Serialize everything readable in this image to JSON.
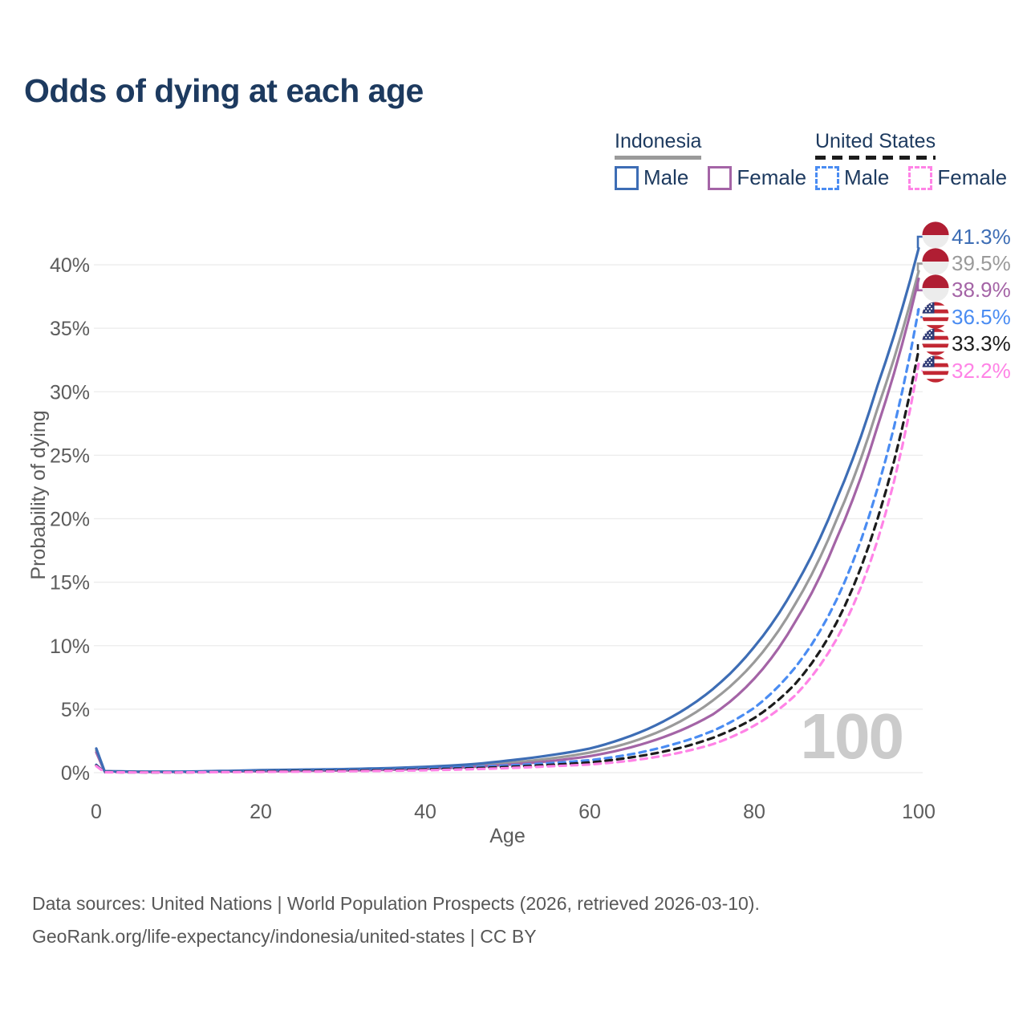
{
  "title": "Odds of dying at each age",
  "legend": {
    "groups": [
      {
        "label": "Indonesia",
        "line_style": "solid",
        "line_color": "#9a9a9a",
        "items": [
          {
            "label": "Male",
            "swatch_color": "#3d6db5",
            "swatch_style": "solid"
          },
          {
            "label": "Female",
            "swatch_color": "#a464a6",
            "swatch_style": "solid"
          }
        ]
      },
      {
        "label": "United States",
        "line_style": "dashed",
        "line_color": "#1c1c1c",
        "items": [
          {
            "label": "Male",
            "swatch_color": "#4a8cf2",
            "swatch_style": "dashed"
          },
          {
            "label": "Female",
            "swatch_color": "#ff83e6",
            "swatch_style": "dashed"
          }
        ]
      }
    ]
  },
  "chart_data": {
    "type": "line",
    "title": "Odds of dying at each age",
    "xlabel": "Age",
    "ylabel": "Probability of dying",
    "x_ticks": [
      0,
      20,
      40,
      60,
      80,
      100
    ],
    "y_ticks": [
      "0%",
      "5%",
      "10%",
      "15%",
      "20%",
      "25%",
      "30%",
      "35%",
      "40%"
    ],
    "xlim": [
      0,
      100
    ],
    "ylim": [
      0,
      42
    ],
    "grid": "horizontal",
    "legend_position": "top-right",
    "watermark": "100",
    "ages": [
      0,
      1,
      5,
      10,
      15,
      20,
      25,
      30,
      35,
      40,
      45,
      50,
      55,
      60,
      65,
      70,
      75,
      80,
      85,
      90,
      95,
      100
    ],
    "series": [
      {
        "name": "Indonesia Male",
        "country": "Indonesia",
        "sex": "Male",
        "flag": "id",
        "color": "#3d6db5",
        "dashed": false,
        "end_label": "41.3%",
        "values": [
          1.9,
          0.12,
          0.08,
          0.08,
          0.13,
          0.2,
          0.24,
          0.28,
          0.35,
          0.46,
          0.63,
          0.95,
          1.35,
          1.9,
          2.9,
          4.4,
          6.6,
          9.9,
          14.7,
          21.5,
          30.5,
          41.3
        ]
      },
      {
        "name": "Indonesia Both sexes",
        "country": "Indonesia",
        "sex": "Both",
        "flag": "id",
        "color": "#9a9a9a",
        "dashed": false,
        "end_label": "39.5%",
        "values": [
          1.75,
          0.11,
          0.07,
          0.07,
          0.11,
          0.15,
          0.18,
          0.22,
          0.28,
          0.38,
          0.52,
          0.76,
          1.1,
          1.58,
          2.4,
          3.7,
          5.7,
          8.7,
          13.3,
          19.9,
          28.7,
          39.5
        ]
      },
      {
        "name": "Indonesia Female",
        "country": "Indonesia",
        "sex": "Female",
        "flag": "id",
        "color": "#a464a6",
        "dashed": false,
        "end_label": "38.9%",
        "values": [
          1.6,
          0.1,
          0.06,
          0.06,
          0.09,
          0.11,
          0.14,
          0.17,
          0.22,
          0.3,
          0.43,
          0.62,
          0.9,
          1.3,
          2.0,
          3.05,
          4.6,
          7.4,
          11.9,
          18.4,
          27.3,
          38.9
        ]
      },
      {
        "name": "United States Male",
        "country": "United States",
        "sex": "Male",
        "flag": "us",
        "color": "#4a8cf2",
        "dashed": true,
        "end_label": "36.5%",
        "values": [
          0.62,
          0.04,
          0.03,
          0.03,
          0.07,
          0.13,
          0.17,
          0.21,
          0.26,
          0.33,
          0.43,
          0.56,
          0.74,
          0.98,
          1.45,
          2.2,
          3.3,
          5.1,
          8.3,
          13.6,
          22.4,
          36.5
        ]
      },
      {
        "name": "United States Both sexes",
        "country": "United States",
        "sex": "Both",
        "flag": "us",
        "color": "#1c1c1c",
        "dashed": true,
        "end_label": "33.3%",
        "values": [
          0.57,
          0.04,
          0.03,
          0.02,
          0.05,
          0.1,
          0.13,
          0.16,
          0.2,
          0.26,
          0.34,
          0.45,
          0.6,
          0.8,
          1.2,
          1.8,
          2.75,
          4.3,
          7.0,
          11.8,
          20.0,
          33.3
        ]
      },
      {
        "name": "United States Female",
        "country": "United States",
        "sex": "Female",
        "flag": "us",
        "color": "#ff83e6",
        "dashed": true,
        "end_label": "32.2%",
        "values": [
          0.52,
          0.03,
          0.02,
          0.02,
          0.04,
          0.06,
          0.08,
          0.11,
          0.14,
          0.19,
          0.26,
          0.36,
          0.5,
          0.64,
          0.95,
          1.45,
          2.25,
          3.7,
          6.1,
          10.5,
          18.3,
          32.2
        ]
      }
    ]
  },
  "footer": {
    "line1": "Data sources: United Nations | World Population Prospects (2026, retrieved 2026-03-10).",
    "line2": "GeoRank.org/life-expectancy/indonesia/united-states | CC BY"
  }
}
